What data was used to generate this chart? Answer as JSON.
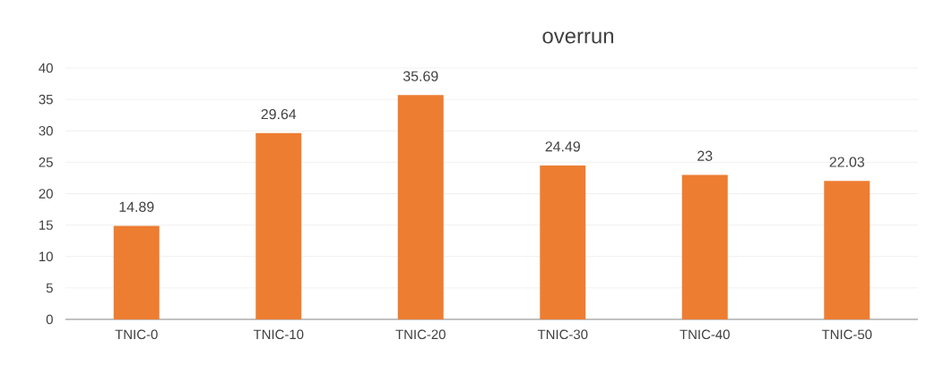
{
  "chart_data": {
    "type": "bar",
    "title": "overrun",
    "categories": [
      "TNIC-0",
      "TNIC-10",
      "TNIC-20",
      "TNIC-30",
      "TNIC-40",
      "TNIC-50"
    ],
    "values": [
      14.89,
      29.64,
      35.69,
      24.49,
      23,
      22.03
    ],
    "color": "#ed7d31",
    "ylim": [
      0,
      40
    ],
    "yticks": [
      0,
      5,
      10,
      15,
      20,
      25,
      30,
      35,
      40
    ],
    "grid": "y",
    "data_labels": true
  }
}
